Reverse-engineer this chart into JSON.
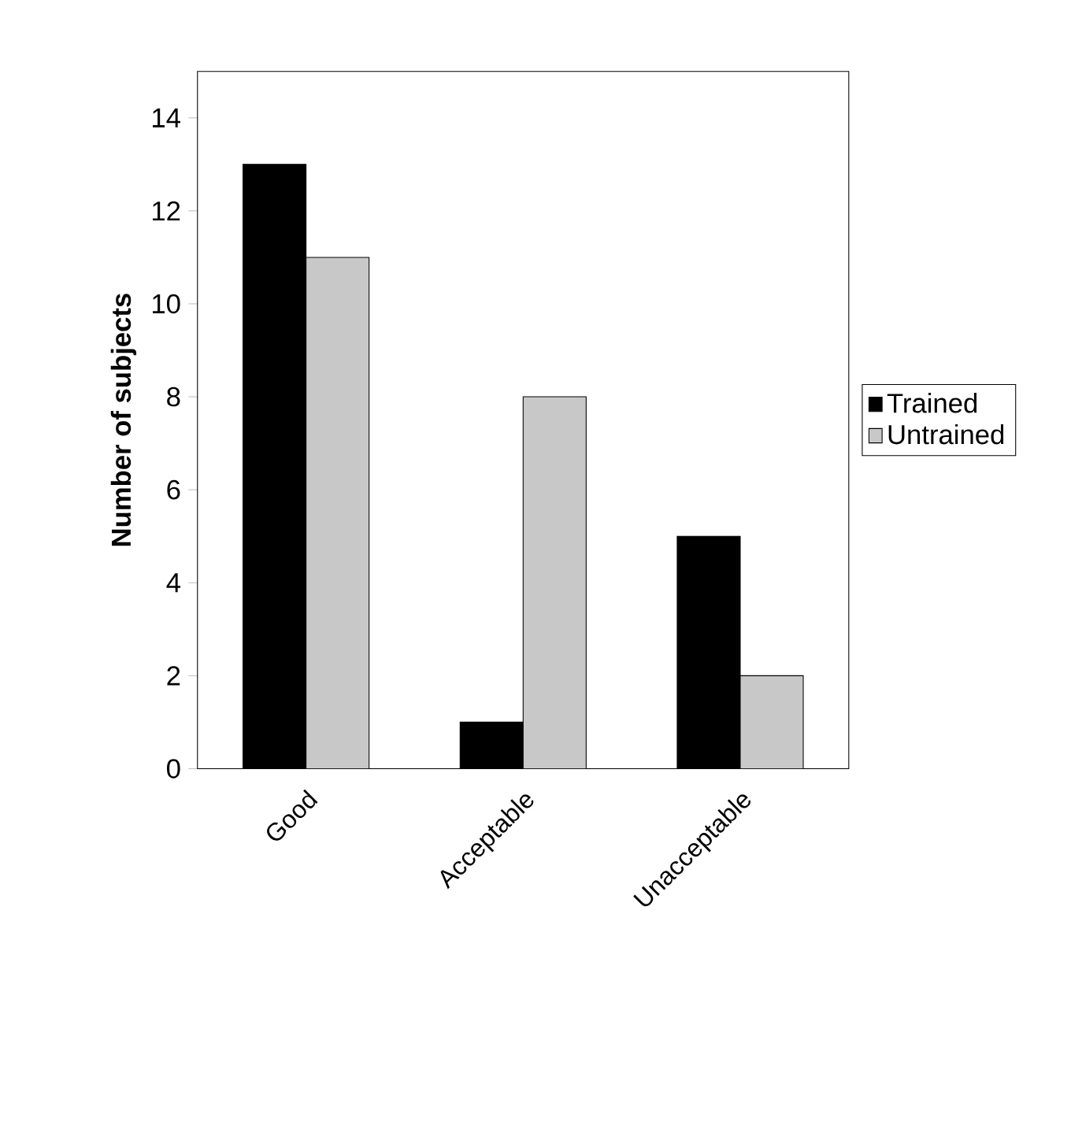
{
  "chart_data": {
    "type": "bar",
    "ylabel": "Number of subjects",
    "categories": [
      "Good",
      "Acceptable",
      "Unacceptable"
    ],
    "series": [
      {
        "name": "Trained",
        "color": "#000000",
        "values": [
          13,
          1,
          5
        ]
      },
      {
        "name": "Untrained",
        "color": "#c8c8c8",
        "values": [
          11,
          8,
          2
        ]
      }
    ],
    "ylim": [
      0,
      15
    ],
    "yticks": [
      0,
      2,
      4,
      6,
      8,
      10,
      12,
      14
    ],
    "grid": false,
    "legend": "right"
  }
}
